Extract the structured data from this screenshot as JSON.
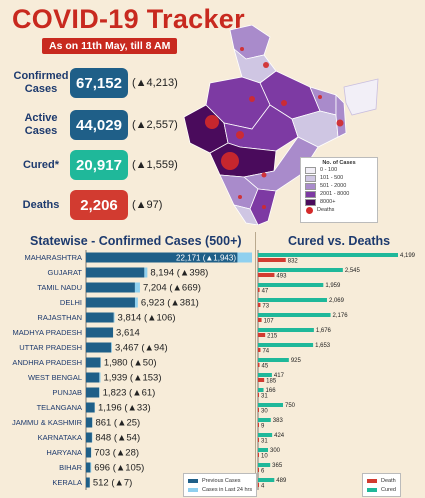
{
  "header": {
    "title": "COVID-19 Tracker",
    "date_badge": "As on 11th May, till 8 AM"
  },
  "stats": [
    {
      "label": "Confirmed Cases",
      "value": "67,152",
      "delta": "(▲4,213)",
      "color": "#1f5f88"
    },
    {
      "label": "Active Cases",
      "value": "44,029",
      "delta": "(▲2,557)",
      "color": "#1f5f88"
    },
    {
      "label": "Cured*",
      "value": "20,917",
      "delta": "(▲1,559)",
      "color": "#1fb89a"
    },
    {
      "label": "Deaths",
      "value": "2,206",
      "delta": "(▲97)",
      "color": "#d23b30"
    }
  ],
  "map_legend": {
    "title": "No. of Cases",
    "items": [
      {
        "label": "0 - 100",
        "color": "#f2eff7"
      },
      {
        "label": "101 - 500",
        "color": "#cfc6e3"
      },
      {
        "label": "501 - 2000",
        "color": "#a98bcb"
      },
      {
        "label": "2001 - 8000",
        "color": "#7d3aa3"
      },
      {
        "label": "8000+",
        "color": "#4a0b5c"
      }
    ],
    "deaths_label": "Deaths",
    "deaths_color": "#d42a2a"
  },
  "chart_data": [
    {
      "type": "bar",
      "title": "Statewise - Confirmed Cases (500+)",
      "categories": [
        "MAHARASHTRA",
        "GUJARAT",
        "TAMIL NADU",
        "DELHI",
        "RAJASTHAN",
        "MADHYA PRADESH",
        "UTTAR PRADESH",
        "ANDHRA PRADESH",
        "WEST BENGAL",
        "PUNJAB",
        "TELANGANA",
        "JAMMU & KASHMIR",
        "KARNATAKA",
        "HARYANA",
        "BIHAR",
        "KERALA"
      ],
      "series": [
        {
          "name": "Previous Cases",
          "color": "#1f5f88",
          "values": [
            20228,
            7796,
            6535,
            6542,
            3708,
            3614,
            3373,
            1930,
            1786,
            1762,
            1163,
            836,
            794,
            675,
            591,
            505
          ]
        },
        {
          "name": "Cases in Last 24 hrs",
          "color": "#8fd0ef",
          "values": [
            1943,
            398,
            669,
            381,
            106,
            0,
            94,
            50,
            153,
            61,
            33,
            25,
            54,
            28,
            105,
            7
          ]
        }
      ],
      "totals": [
        22171,
        8194,
        7204,
        6923,
        3814,
        3614,
        3467,
        1980,
        1939,
        1823,
        1196,
        861,
        848,
        703,
        696,
        512
      ],
      "value_labels": [
        "22,171 (▲1,943)",
        "8,194 (▲398)",
        "7,204 (▲669)",
        "6,923 (▲381)",
        "3,814 (▲106)",
        "3,614",
        "3,467 (▲94)",
        "1,980 (▲50)",
        "1,939 (▲153)",
        "1,823 (▲61)",
        "1,196 (▲33)",
        "861 (▲25)",
        "848 (▲54)",
        "703 (▲28)",
        "696 (▲105)",
        "512 (▲7)"
      ],
      "orientation": "horizontal",
      "legend_position": "bottom-right"
    },
    {
      "type": "bar",
      "title": "Cured vs. Deaths",
      "categories": [
        "MAHARASHTRA",
        "GUJARAT",
        "TAMIL NADU",
        "DELHI",
        "RAJASTHAN",
        "MADHYA PRADESH",
        "UTTAR PRADESH",
        "ANDHRA PRADESH",
        "WEST BENGAL",
        "PUNJAB",
        "TELANGANA",
        "JAMMU & KASHMIR",
        "KARNATAKA",
        "HARYANA",
        "BIHAR",
        "KERALA"
      ],
      "series": [
        {
          "name": "Death",
          "color": "#d23b30",
          "values": [
            832,
            493,
            47,
            73,
            107,
            215,
            74,
            45,
            185,
            31,
            30,
            9,
            31,
            10,
            6,
            4
          ]
        },
        {
          "name": "Cured",
          "color": "#1fb89a",
          "values": [
            4199,
            2545,
            1959,
            2069,
            2176,
            1676,
            1653,
            925,
            417,
            166,
            750,
            383,
            424,
            300,
            365,
            489
          ]
        }
      ],
      "orientation": "horizontal",
      "legend_position": "bottom-right"
    }
  ]
}
